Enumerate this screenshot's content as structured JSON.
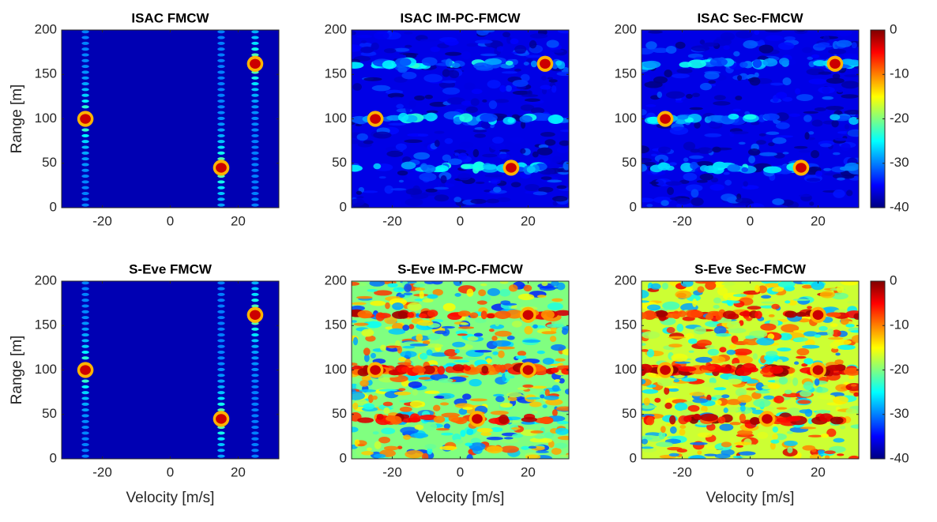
{
  "chart_data": [
    {
      "type": "heatmap",
      "title": "ISAC FMCW",
      "ylabel": "Range [m]",
      "colormap": "jet",
      "x": [
        -25,
        15,
        25
      ],
      "y": [
        100,
        45,
        162
      ],
      "values": [
        0,
        0,
        0
      ],
      "background": -38,
      "sidelobe": -30,
      "sidelobe_direction": "vertical",
      "xlim": [
        -32,
        32
      ],
      "ylim": [
        0,
        200
      ],
      "xticks": [
        -20,
        0,
        20
      ],
      "yticks": [
        0,
        50,
        100,
        150,
        200
      ]
    },
    {
      "type": "heatmap",
      "title": "ISAC IM-PC-FMCW",
      "colormap": "jet",
      "x": [
        25,
        -25,
        15
      ],
      "y": [
        162,
        100,
        45
      ],
      "values": [
        0,
        0,
        0
      ],
      "background": -36,
      "sidelobe": -28,
      "sidelobe_direction": "horizontal",
      "xlim": [
        -32,
        32
      ],
      "ylim": [
        0,
        200
      ],
      "xticks": [
        -20,
        0,
        20
      ],
      "yticks": [
        0,
        50,
        100,
        150,
        200
      ]
    },
    {
      "type": "heatmap",
      "title": "ISAC Sec-FMCW",
      "colormap": "jet",
      "x": [
        25,
        -25,
        15
      ],
      "y": [
        162,
        100,
        45
      ],
      "values": [
        0,
        0,
        0
      ],
      "background": -36,
      "sidelobe": -29,
      "sidelobe_direction": "horizontal",
      "xlim": [
        -32,
        32
      ],
      "ylim": [
        0,
        200
      ],
      "xticks": [
        -20,
        0,
        20
      ],
      "yticks": [
        0,
        50,
        100,
        150,
        200
      ],
      "zlim": [
        -40,
        0
      ],
      "zticks": [
        0,
        -10,
        -20,
        -30,
        -40
      ]
    },
    {
      "type": "heatmap",
      "title": "S-Eve FMCW",
      "ylabel": "Range [m]",
      "xlabel": "Velocity [m/s]",
      "colormap": "jet",
      "x": [
        -25,
        15,
        25
      ],
      "y": [
        100,
        45,
        162
      ],
      "values": [
        0,
        0,
        0
      ],
      "background": -38,
      "sidelobe": -30,
      "sidelobe_direction": "vertical",
      "xlim": [
        -32,
        32
      ],
      "ylim": [
        0,
        200
      ],
      "xticks": [
        -20,
        0,
        20
      ],
      "yticks": [
        0,
        50,
        100,
        150,
        200
      ]
    },
    {
      "type": "heatmap",
      "title": "S-Eve IM-PC-FMCW",
      "xlabel": "Velocity [m/s]",
      "colormap": "jet",
      "x": [
        20,
        -25,
        20,
        5
      ],
      "y": [
        162,
        100,
        100,
        45
      ],
      "values": [
        0,
        0,
        0,
        0
      ],
      "background": -20,
      "sidelobe": -6,
      "sidelobe_direction": "horizontal",
      "xlim": [
        -32,
        32
      ],
      "ylim": [
        0,
        200
      ],
      "xticks": [
        -20,
        0,
        20
      ],
      "yticks": [
        0,
        50,
        100,
        150,
        200
      ]
    },
    {
      "type": "heatmap",
      "title": "S-Eve Sec-FMCW",
      "xlabel": "Velocity [m/s]",
      "colormap": "jet",
      "x": [
        20,
        -25,
        20,
        5
      ],
      "y": [
        162,
        100,
        100,
        45
      ],
      "values": [
        0,
        0,
        0,
        0
      ],
      "background": -17,
      "sidelobe": -5,
      "sidelobe_direction": "horizontal",
      "xlim": [
        -32,
        32
      ],
      "ylim": [
        0,
        200
      ],
      "xticks": [
        -20,
        0,
        20
      ],
      "yticks": [
        0,
        50,
        100,
        150,
        200
      ],
      "zlim": [
        -40,
        0
      ],
      "zticks": [
        0,
        -10,
        -20,
        -30,
        -40
      ]
    }
  ]
}
